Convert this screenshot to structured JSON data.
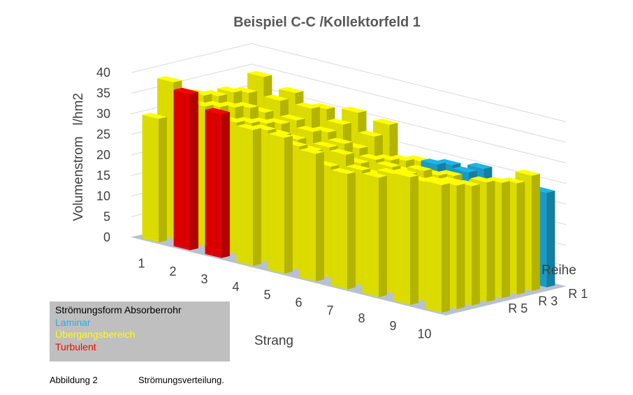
{
  "chart_data": {
    "type": "bar",
    "subtype": "3d-column",
    "title": "Beispiel C-C /Kollektorfeld 1",
    "ylabel": "Volumenstrom   l/hm2",
    "xlabel": "Strang",
    "zlabel": "Reihe",
    "ylim": [
      0,
      40
    ],
    "yticks": [
      "0",
      "5",
      "10",
      "15",
      "20",
      "25",
      "30",
      "35",
      "40"
    ],
    "categories": [
      "1",
      "2",
      "3",
      "4",
      "5",
      "6",
      "7",
      "8",
      "9",
      "10"
    ],
    "depth_tick_labels": [
      "R 1",
      "R 3",
      "R 5"
    ],
    "grid": true,
    "series": [
      {
        "row": 1,
        "values": [
          30,
          38,
          35,
          33,
          33,
          31,
          28,
          29,
          31,
          31
        ]
      },
      {
        "row": 2,
        "values": [
          38,
          34,
          32,
          32,
          30,
          27,
          28,
          29,
          29,
          30
        ]
      },
      {
        "row": 3,
        "values": [
          34,
          33,
          31,
          30,
          28,
          29,
          26,
          28,
          28,
          29
        ]
      },
      {
        "row": 4,
        "values": [
          33,
          32,
          30,
          28,
          28,
          26,
          27,
          28,
          27,
          29
        ]
      },
      {
        "row": 5,
        "values": [
          32,
          31,
          29,
          29,
          28,
          26,
          25,
          26,
          24,
          28
        ]
      },
      {
        "row": 6,
        "values": [
          32,
          29,
          29,
          28,
          26,
          25,
          24,
          25,
          25,
          27
        ]
      },
      {
        "row": 7,
        "values": [
          31,
          31,
          31,
          29,
          28,
          24,
          25,
          25,
          24,
          28
        ]
      },
      {
        "row": 8,
        "values": [
          34,
          32,
          30,
          31,
          30,
          23,
          24,
          25,
          23,
          23
        ]
      }
    ],
    "flow_type": [
      [
        "U",
        "T",
        "T",
        "U",
        "U",
        "U",
        "U",
        "U",
        "U",
        "U"
      ],
      [
        "U",
        "U",
        "U",
        "U",
        "U",
        "U",
        "U",
        "U",
        "U",
        "U"
      ],
      [
        "U",
        "U",
        "U",
        "U",
        "U",
        "U",
        "U",
        "U",
        "U",
        "U"
      ],
      [
        "U",
        "U",
        "U",
        "U",
        "U",
        "U",
        "U",
        "U",
        "U",
        "U"
      ],
      [
        "U",
        "U",
        "U",
        "U",
        "U",
        "U",
        "U",
        "U",
        "U",
        "U"
      ],
      [
        "U",
        "U",
        "U",
        "U",
        "U",
        "U",
        "U",
        "U",
        "U",
        "U"
      ],
      [
        "U",
        "U",
        "U",
        "U",
        "U",
        "U",
        "L",
        "L",
        "L",
        "U"
      ],
      [
        "U",
        "U",
        "U",
        "U",
        "U",
        "U",
        "L",
        "L",
        "L",
        "L"
      ]
    ],
    "colors": {
      "laminar": "#1eb4e6",
      "uebergang": "#ffff00",
      "turbulent": "#ff0000",
      "floor": "#b7c2d0",
      "grid": "#d9d9d9"
    }
  },
  "legend": {
    "title": "Strömungsform Absorberrohr",
    "items": [
      {
        "label": "Laminar",
        "color": "#1eb4e6"
      },
      {
        "label": "Übergangsbereich",
        "color": "#ffff00"
      },
      {
        "label": "Turbulent",
        "color": "#ff0000"
      }
    ]
  },
  "caption": {
    "number": "Abbildung 2",
    "text": "Strömungsverteilung."
  }
}
